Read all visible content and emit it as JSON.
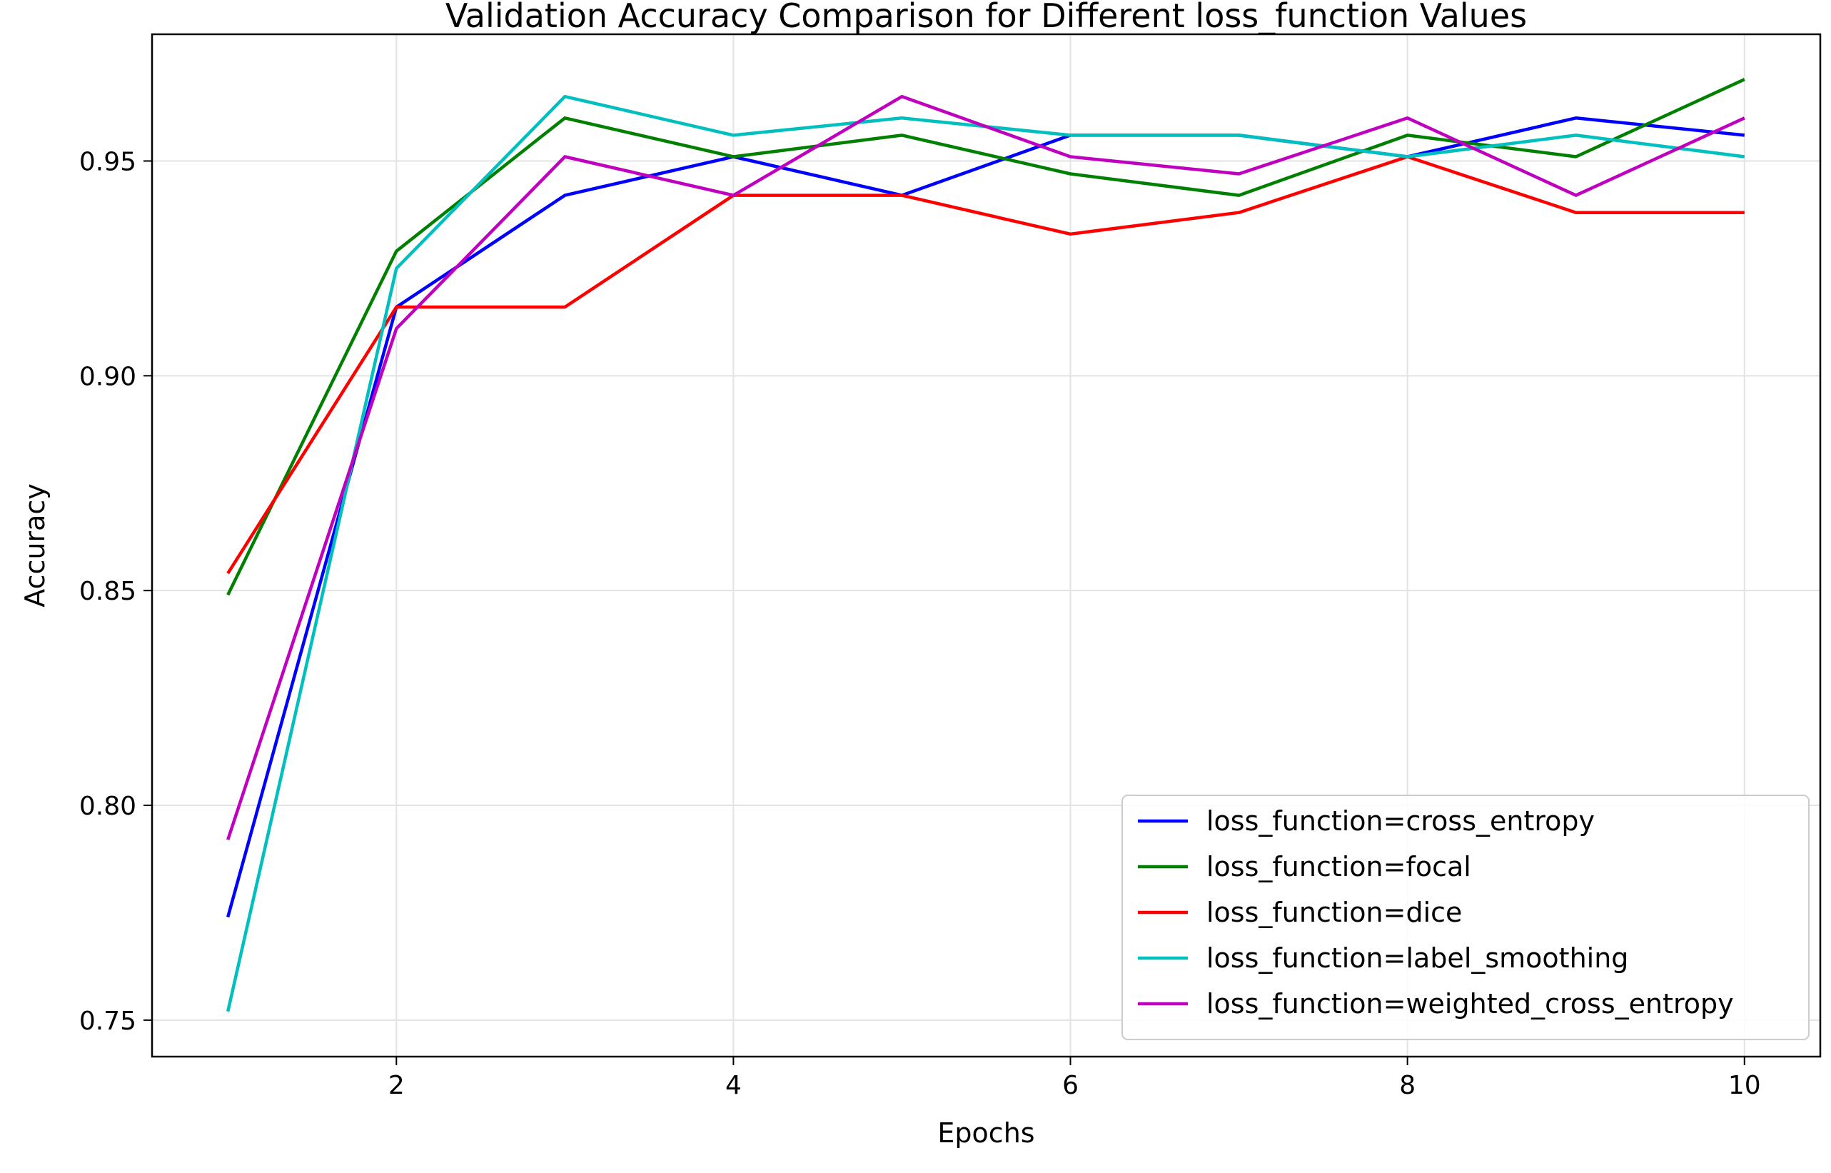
{
  "chart_data": {
    "type": "line",
    "title": "Validation Accuracy Comparison for Different loss_function Values",
    "xlabel": "Epochs",
    "ylabel": "Accuracy",
    "xlim": [
      0.55,
      10.45
    ],
    "ylim": [
      0.7415,
      0.9795
    ],
    "xticks": [
      2,
      4,
      6,
      8,
      10
    ],
    "yticks": [
      0.75,
      0.8,
      0.85,
      0.9,
      0.95
    ],
    "ytick_labels": [
      "0.75",
      "0.80",
      "0.85",
      "0.90",
      "0.95"
    ],
    "grid": true,
    "legend_position": "lower-right",
    "x": [
      1,
      2,
      3,
      4,
      5,
      6,
      7,
      8,
      9,
      10
    ],
    "series": [
      {
        "name": "loss_function=cross_entropy",
        "color": "#0000ff",
        "values": [
          0.774,
          0.916,
          0.942,
          0.951,
          0.942,
          0.956,
          0.956,
          0.951,
          0.96,
          0.956
        ]
      },
      {
        "name": "loss_function=focal",
        "color": "#008000",
        "values": [
          0.849,
          0.929,
          0.96,
          0.951,
          0.956,
          0.947,
          0.942,
          0.956,
          0.951,
          0.969
        ]
      },
      {
        "name": "loss_function=dice",
        "color": "#ff0000",
        "values": [
          0.854,
          0.916,
          0.916,
          0.942,
          0.942,
          0.933,
          0.938,
          0.951,
          0.938,
          0.938
        ]
      },
      {
        "name": "loss_function=label_smoothing",
        "color": "#00bfbf",
        "values": [
          0.752,
          0.925,
          0.965,
          0.956,
          0.96,
          0.956,
          0.956,
          0.951,
          0.956,
          0.951
        ]
      },
      {
        "name": "loss_function=weighted_cross_entropy",
        "color": "#bf00bf",
        "values": [
          0.792,
          0.911,
          0.951,
          0.942,
          0.965,
          0.951,
          0.947,
          0.96,
          0.942,
          0.96
        ]
      }
    ]
  }
}
